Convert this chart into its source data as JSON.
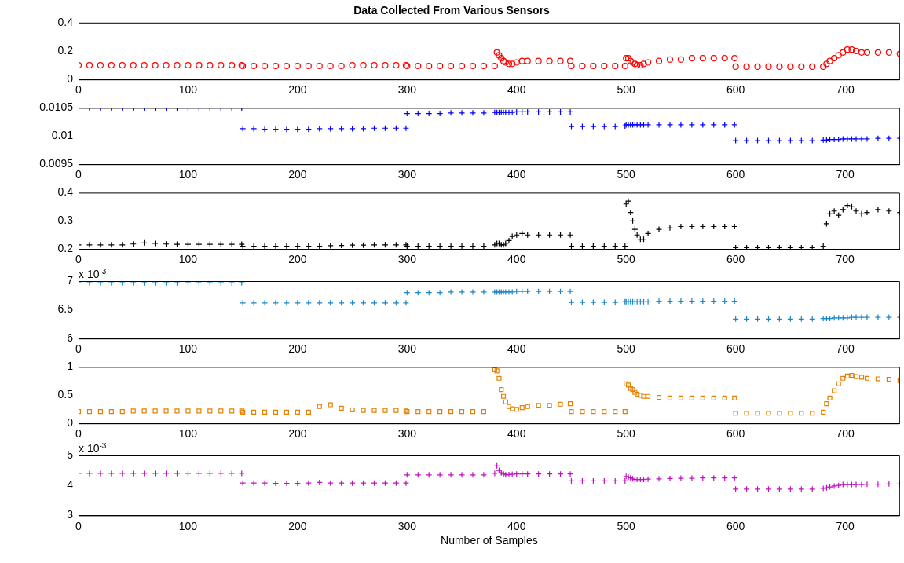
{
  "chart_data": [
    {
      "type": "scatter",
      "title": "Data Collected From Various Sensors",
      "marker": "circle",
      "xlim": [
        0,
        750
      ],
      "xticks": [
        0,
        100,
        200,
        300,
        400,
        500,
        600,
        700
      ],
      "ylim": [
        0,
        0.4
      ],
      "yticks": [
        0,
        0.2,
        0.4
      ],
      "x": [
        0,
        10,
        20,
        30,
        40,
        50,
        60,
        70,
        80,
        90,
        100,
        110,
        120,
        130,
        140,
        149,
        150,
        160,
        170,
        180,
        190,
        200,
        210,
        220,
        230,
        240,
        250,
        260,
        270,
        280,
        290,
        299,
        300,
        310,
        320,
        330,
        340,
        350,
        360,
        370,
        380,
        382,
        384,
        386,
        388,
        390,
        393,
        396,
        400,
        405,
        410,
        420,
        430,
        440,
        449,
        450,
        460,
        470,
        480,
        490,
        499,
        500,
        502,
        504,
        506,
        508,
        510,
        513,
        516,
        520,
        530,
        540,
        550,
        560,
        570,
        580,
        590,
        599,
        600,
        610,
        620,
        630,
        640,
        650,
        660,
        670,
        680,
        683,
        686,
        690,
        694,
        698,
        702,
        706,
        710,
        715,
        720,
        730,
        740,
        750
      ],
      "series": [
        {
          "color": "#ff0000",
          "values": [
            0.1,
            0.1,
            0.1,
            0.1,
            0.1,
            0.1,
            0.1,
            0.1,
            0.1,
            0.1,
            0.1,
            0.1,
            0.1,
            0.1,
            0.1,
            0.1,
            0.095,
            0.095,
            0.095,
            0.095,
            0.095,
            0.095,
            0.095,
            0.095,
            0.095,
            0.095,
            0.1,
            0.1,
            0.1,
            0.1,
            0.1,
            0.1,
            0.095,
            0.095,
            0.095,
            0.095,
            0.095,
            0.095,
            0.095,
            0.095,
            0.095,
            0.19,
            0.17,
            0.15,
            0.13,
            0.12,
            0.11,
            0.11,
            0.12,
            0.13,
            0.13,
            0.13,
            0.13,
            0.13,
            0.13,
            0.095,
            0.095,
            0.095,
            0.095,
            0.095,
            0.095,
            0.15,
            0.15,
            0.13,
            0.12,
            0.11,
            0.1,
            0.1,
            0.11,
            0.12,
            0.13,
            0.14,
            0.14,
            0.15,
            0.15,
            0.15,
            0.15,
            0.15,
            0.09,
            0.09,
            0.09,
            0.09,
            0.09,
            0.09,
            0.09,
            0.09,
            0.09,
            0.11,
            0.13,
            0.15,
            0.17,
            0.19,
            0.21,
            0.21,
            0.2,
            0.19,
            0.19,
            0.19,
            0.19,
            0.18
          ]
        }
      ]
    },
    {
      "type": "scatter",
      "marker": "cross",
      "xlim": [
        0,
        750
      ],
      "xticks": [
        0,
        100,
        200,
        300,
        400,
        500,
        600,
        700
      ],
      "ylim": [
        0.0095,
        0.0105
      ],
      "yticks": [
        0.0095,
        0.01,
        0.0105
      ],
      "x": [
        0,
        10,
        20,
        30,
        40,
        50,
        60,
        70,
        80,
        90,
        100,
        110,
        120,
        130,
        140,
        149,
        150,
        160,
        170,
        180,
        190,
        200,
        210,
        220,
        230,
        240,
        250,
        260,
        270,
        280,
        290,
        299,
        300,
        310,
        320,
        330,
        340,
        350,
        360,
        370,
        380,
        382,
        384,
        386,
        388,
        390,
        393,
        396,
        400,
        405,
        410,
        420,
        430,
        440,
        449,
        450,
        460,
        470,
        480,
        490,
        499,
        500,
        502,
        504,
        506,
        508,
        510,
        513,
        516,
        520,
        530,
        540,
        550,
        560,
        570,
        580,
        590,
        599,
        600,
        610,
        620,
        630,
        640,
        650,
        660,
        670,
        680,
        683,
        686,
        690,
        694,
        698,
        702,
        706,
        710,
        715,
        720,
        730,
        740,
        750
      ],
      "series": [
        {
          "color": "#0000ff",
          "values": [
            0.0105,
            0.0105,
            0.0105,
            0.0105,
            0.0105,
            0.0105,
            0.0105,
            0.0105,
            0.0105,
            0.0105,
            0.0105,
            0.0105,
            0.0105,
            0.0105,
            0.0105,
            0.0105,
            0.01013,
            0.01013,
            0.01012,
            0.01012,
            0.01012,
            0.01012,
            0.01012,
            0.01013,
            0.01013,
            0.01013,
            0.01013,
            0.01013,
            0.01014,
            0.01014,
            0.01014,
            0.01014,
            0.0104,
            0.0104,
            0.0104,
            0.0104,
            0.01041,
            0.01041,
            0.01041,
            0.01041,
            0.01042,
            0.01042,
            0.01042,
            0.01042,
            0.01042,
            0.01042,
            0.01042,
            0.01042,
            0.01043,
            0.01043,
            0.01043,
            0.01043,
            0.01043,
            0.01043,
            0.01043,
            0.01017,
            0.01017,
            0.01017,
            0.01017,
            0.01017,
            0.01018,
            0.0102,
            0.0102,
            0.0102,
            0.0102,
            0.0102,
            0.0102,
            0.0102,
            0.0102,
            0.0102,
            0.0102,
            0.0102,
            0.0102,
            0.0102,
            0.0102,
            0.0102,
            0.0102,
            0.0102,
            0.00992,
            0.00992,
            0.00992,
            0.00992,
            0.00992,
            0.00992,
            0.00992,
            0.00992,
            0.00993,
            0.00993,
            0.00994,
            0.00994,
            0.00994,
            0.00995,
            0.00995,
            0.00995,
            0.00995,
            0.00995,
            0.00995,
            0.00996,
            0.00996,
            0.00996
          ]
        }
      ]
    },
    {
      "type": "scatter",
      "marker": "cross",
      "xlim": [
        0,
        750
      ],
      "xticks": [
        0,
        100,
        200,
        300,
        400,
        500,
        600,
        700
      ],
      "ylim": [
        0.2,
        0.4
      ],
      "yticks": [
        0.2,
        0.3,
        0.4
      ],
      "x": [
        0,
        10,
        20,
        30,
        40,
        50,
        60,
        70,
        80,
        90,
        100,
        110,
        120,
        130,
        140,
        149,
        150,
        160,
        170,
        180,
        190,
        200,
        210,
        220,
        230,
        240,
        250,
        260,
        270,
        280,
        290,
        299,
        300,
        310,
        320,
        330,
        340,
        350,
        360,
        370,
        380,
        382,
        384,
        386,
        388,
        390,
        393,
        396,
        400,
        405,
        410,
        420,
        430,
        440,
        449,
        450,
        460,
        470,
        480,
        490,
        499,
        500,
        502,
        504,
        506,
        508,
        510,
        513,
        516,
        520,
        530,
        540,
        550,
        560,
        570,
        580,
        590,
        599,
        600,
        610,
        620,
        630,
        640,
        650,
        660,
        670,
        680,
        683,
        686,
        690,
        694,
        698,
        702,
        706,
        710,
        715,
        720,
        730,
        740,
        750
      ],
      "series": [
        {
          "color": "#000000",
          "values": [
            0.215,
            0.215,
            0.215,
            0.215,
            0.215,
            0.218,
            0.222,
            0.22,
            0.218,
            0.217,
            0.217,
            0.217,
            0.217,
            0.217,
            0.217,
            0.217,
            0.21,
            0.21,
            0.21,
            0.21,
            0.21,
            0.21,
            0.21,
            0.21,
            0.212,
            0.213,
            0.214,
            0.214,
            0.215,
            0.215,
            0.215,
            0.215,
            0.21,
            0.21,
            0.21,
            0.21,
            0.21,
            0.21,
            0.21,
            0.21,
            0.215,
            0.22,
            0.22,
            0.215,
            0.215,
            0.22,
            0.23,
            0.245,
            0.25,
            0.255,
            0.25,
            0.25,
            0.25,
            0.25,
            0.25,
            0.21,
            0.21,
            0.21,
            0.21,
            0.21,
            0.21,
            0.36,
            0.37,
            0.33,
            0.3,
            0.27,
            0.25,
            0.235,
            0.235,
            0.255,
            0.27,
            0.275,
            0.28,
            0.28,
            0.28,
            0.28,
            0.28,
            0.28,
            0.205,
            0.205,
            0.205,
            0.205,
            0.205,
            0.205,
            0.205,
            0.205,
            0.21,
            0.29,
            0.325,
            0.335,
            0.32,
            0.34,
            0.355,
            0.35,
            0.335,
            0.325,
            0.33,
            0.34,
            0.335,
            0.33
          ]
        }
      ]
    },
    {
      "type": "scatter",
      "marker": "cross",
      "xlim": [
        0,
        750
      ],
      "xticks": [
        0,
        100,
        200,
        300,
        400,
        500,
        600,
        700
      ],
      "ylim": [
        6,
        7
      ],
      "yticks": [
        6,
        6.5,
        7
      ],
      "annotations": [
        "x 10$^{-3}$"
      ],
      "x": [
        0,
        10,
        20,
        30,
        40,
        50,
        60,
        70,
        80,
        90,
        100,
        110,
        120,
        130,
        140,
        149,
        150,
        160,
        170,
        180,
        190,
        200,
        210,
        220,
        230,
        240,
        250,
        260,
        270,
        280,
        290,
        299,
        300,
        310,
        320,
        330,
        340,
        350,
        360,
        370,
        380,
        382,
        384,
        386,
        388,
        390,
        393,
        396,
        400,
        405,
        410,
        420,
        430,
        440,
        449,
        450,
        460,
        470,
        480,
        490,
        499,
        500,
        502,
        504,
        506,
        508,
        510,
        513,
        516,
        520,
        530,
        540,
        550,
        560,
        570,
        580,
        590,
        599,
        600,
        610,
        620,
        630,
        640,
        650,
        660,
        670,
        680,
        683,
        686,
        690,
        694,
        698,
        702,
        706,
        710,
        715,
        720,
        730,
        740,
        750
      ],
      "series": [
        {
          "color": "#1a86c8",
          "values": [
            6.97,
            6.97,
            6.97,
            6.97,
            6.97,
            6.97,
            6.97,
            6.97,
            6.97,
            6.97,
            6.97,
            6.97,
            6.97,
            6.97,
            6.97,
            6.97,
            6.62,
            6.62,
            6.62,
            6.62,
            6.62,
            6.62,
            6.62,
            6.62,
            6.62,
            6.62,
            6.62,
            6.62,
            6.62,
            6.62,
            6.62,
            6.62,
            6.8,
            6.8,
            6.8,
            6.8,
            6.81,
            6.81,
            6.81,
            6.81,
            6.81,
            6.81,
            6.81,
            6.81,
            6.81,
            6.81,
            6.81,
            6.81,
            6.82,
            6.82,
            6.82,
            6.82,
            6.82,
            6.82,
            6.82,
            6.63,
            6.63,
            6.63,
            6.63,
            6.63,
            6.64,
            6.64,
            6.64,
            6.64,
            6.64,
            6.64,
            6.64,
            6.64,
            6.64,
            6.64,
            6.65,
            6.65,
            6.65,
            6.65,
            6.65,
            6.65,
            6.65,
            6.65,
            6.34,
            6.34,
            6.34,
            6.34,
            6.34,
            6.34,
            6.34,
            6.34,
            6.35,
            6.35,
            6.35,
            6.36,
            6.36,
            6.36,
            6.36,
            6.37,
            6.37,
            6.37,
            6.37,
            6.37,
            6.37,
            6.37
          ]
        }
      ]
    },
    {
      "type": "scatter",
      "marker": "square",
      "xlim": [
        0,
        750
      ],
      "xticks": [
        0,
        100,
        200,
        300,
        400,
        500,
        600,
        700
      ],
      "ylim": [
        0,
        1
      ],
      "yticks": [
        0,
        0.5,
        1
      ],
      "x": [
        0,
        10,
        20,
        30,
        40,
        50,
        60,
        70,
        80,
        90,
        100,
        110,
        120,
        130,
        140,
        149,
        150,
        160,
        170,
        180,
        190,
        200,
        210,
        220,
        230,
        240,
        250,
        260,
        270,
        280,
        290,
        299,
        300,
        310,
        320,
        330,
        340,
        350,
        360,
        370,
        380,
        382,
        384,
        386,
        388,
        390,
        393,
        396,
        400,
        405,
        410,
        420,
        430,
        440,
        449,
        450,
        460,
        470,
        480,
        490,
        499,
        500,
        502,
        504,
        506,
        508,
        510,
        513,
        516,
        520,
        530,
        540,
        550,
        560,
        570,
        580,
        590,
        599,
        600,
        610,
        620,
        630,
        640,
        650,
        660,
        670,
        680,
        683,
        686,
        690,
        694,
        698,
        702,
        706,
        710,
        715,
        720,
        730,
        740,
        750
      ],
      "series": [
        {
          "color": "#e38000",
          "values": [
            0.21,
            0.21,
            0.21,
            0.21,
            0.21,
            0.22,
            0.22,
            0.22,
            0.22,
            0.22,
            0.22,
            0.22,
            0.22,
            0.22,
            0.22,
            0.22,
            0.2,
            0.2,
            0.2,
            0.2,
            0.2,
            0.2,
            0.2,
            0.3,
            0.33,
            0.27,
            0.24,
            0.23,
            0.23,
            0.23,
            0.23,
            0.23,
            0.21,
            0.21,
            0.21,
            0.21,
            0.21,
            0.21,
            0.21,
            0.21,
            0.95,
            0.93,
            0.8,
            0.6,
            0.48,
            0.38,
            0.3,
            0.26,
            0.25,
            0.28,
            0.3,
            0.32,
            0.32,
            0.34,
            0.35,
            0.21,
            0.21,
            0.21,
            0.21,
            0.21,
            0.21,
            0.7,
            0.68,
            0.62,
            0.6,
            0.55,
            0.52,
            0.5,
            0.48,
            0.48,
            0.46,
            0.45,
            0.45,
            0.45,
            0.45,
            0.45,
            0.45,
            0.45,
            0.18,
            0.18,
            0.18,
            0.18,
            0.18,
            0.18,
            0.18,
            0.18,
            0.2,
            0.35,
            0.45,
            0.58,
            0.7,
            0.8,
            0.84,
            0.85,
            0.83,
            0.82,
            0.8,
            0.79,
            0.78,
            0.76
          ]
        }
      ]
    },
    {
      "type": "scatter",
      "marker": "cross",
      "xlabel": "Number of Samples",
      "xlim": [
        0,
        750
      ],
      "xticks": [
        0,
        100,
        200,
        300,
        400,
        500,
        600,
        700
      ],
      "ylim": [
        3,
        5
      ],
      "yticks": [
        3,
        4,
        5
      ],
      "annotations": [
        "x 10$^{-3}$"
      ],
      "x": [
        0,
        10,
        20,
        30,
        40,
        50,
        60,
        70,
        80,
        90,
        100,
        110,
        120,
        130,
        140,
        149,
        150,
        160,
        170,
        180,
        190,
        200,
        210,
        220,
        230,
        240,
        250,
        260,
        270,
        280,
        290,
        299,
        300,
        310,
        320,
        330,
        340,
        350,
        360,
        370,
        380,
        382,
        384,
        386,
        388,
        390,
        393,
        396,
        400,
        405,
        410,
        420,
        430,
        440,
        449,
        450,
        460,
        470,
        480,
        490,
        499,
        500,
        502,
        504,
        506,
        508,
        510,
        513,
        516,
        520,
        530,
        540,
        550,
        560,
        570,
        580,
        590,
        599,
        600,
        610,
        620,
        630,
        640,
        650,
        660,
        670,
        680,
        683,
        686,
        690,
        694,
        698,
        702,
        706,
        710,
        715,
        720,
        730,
        740,
        750
      ],
      "series": [
        {
          "color": "#c010c0",
          "values": [
            4.4,
            4.4,
            4.4,
            4.4,
            4.4,
            4.4,
            4.4,
            4.4,
            4.4,
            4.4,
            4.4,
            4.4,
            4.4,
            4.4,
            4.4,
            4.4,
            4.08,
            4.08,
            4.08,
            4.07,
            4.07,
            4.07,
            4.08,
            4.1,
            4.08,
            4.08,
            4.08,
            4.08,
            4.08,
            4.08,
            4.08,
            4.08,
            4.35,
            4.35,
            4.35,
            4.35,
            4.35,
            4.35,
            4.35,
            4.35,
            4.4,
            4.65,
            4.5,
            4.42,
            4.38,
            4.35,
            4.36,
            4.37,
            4.38,
            4.38,
            4.38,
            4.38,
            4.38,
            4.38,
            4.38,
            4.15,
            4.15,
            4.15,
            4.15,
            4.15,
            4.15,
            4.3,
            4.28,
            4.25,
            4.22,
            4.2,
            4.2,
            4.2,
            4.2,
            4.21,
            4.22,
            4.23,
            4.24,
            4.24,
            4.25,
            4.25,
            4.25,
            4.25,
            3.88,
            3.88,
            3.88,
            3.88,
            3.88,
            3.88,
            3.88,
            3.88,
            3.9,
            3.92,
            3.95,
            3.98,
            4,
            4.03,
            4.03,
            4.03,
            4.03,
            4.03,
            4.04,
            4.04,
            4.05,
            4.05
          ]
        }
      ]
    }
  ]
}
